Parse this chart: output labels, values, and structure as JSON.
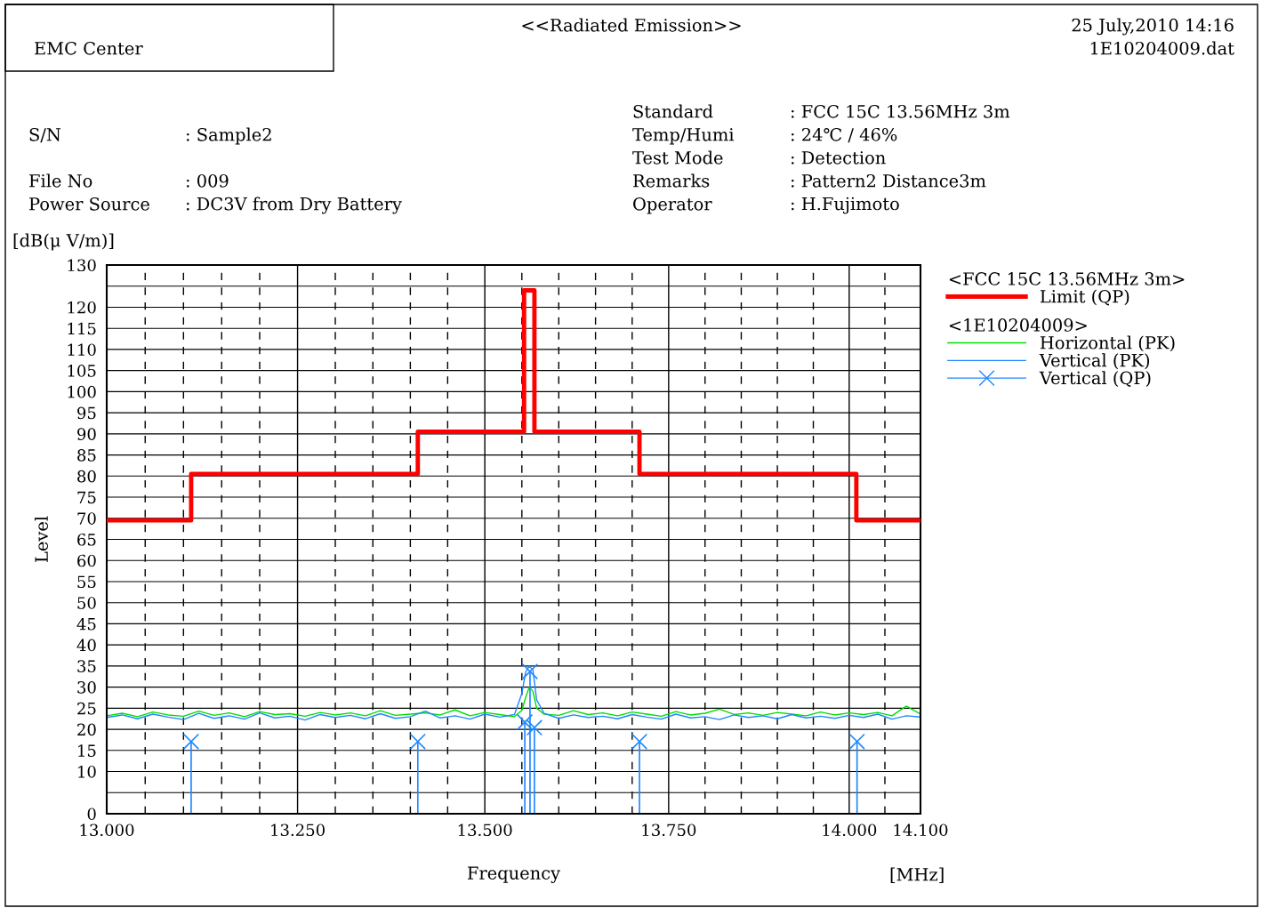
{
  "chart_data": {
    "type": "line",
    "title": "<<Radiated Emission>>",
    "xlabel": "Frequency",
    "ylabel": "Level",
    "legend_title": [
      "<FCC 15C 13.56MHz 3m>",
      "<1E10204009>"
    ],
    "annotations": [
      "EMC Center",
      "25 July,2010 14:16",
      "1E10204009.dat",
      "S/N",
      ": Sample2",
      "File No",
      ": 009",
      "Power Source",
      ": DC3V from Dry Battery",
      "Standard",
      ": FCC 15C 13.56MHz 3m",
      "Temp/Humi",
      ": 24℃ / 46%",
      "Test Mode",
      ": Detection",
      "Remarks",
      ": Pattern2 Distance3m",
      "Operator",
      ": H.Fujimoto",
      "[dB(μ V/m)]",
      "[MHz]"
    ],
    "log": "x",
    "grid": true,
    "legend": "right",
    "xlim": [
      13.0,
      14.1
    ],
    "xticks": [
      {
        "value": 13.0,
        "label": "13.000"
      },
      {
        "value": 13.05,
        "label": null
      },
      {
        "value": 13.1,
        "label": null
      },
      {
        "value": 13.15,
        "label": null
      },
      {
        "value": 13.2,
        "label": null
      },
      {
        "value": 13.25,
        "label": "13.250"
      },
      {
        "value": 13.3,
        "label": null
      },
      {
        "value": 13.35,
        "label": null
      },
      {
        "value": 13.4,
        "label": null
      },
      {
        "value": 13.45,
        "label": null
      },
      {
        "value": 13.5,
        "label": "13.500"
      },
      {
        "value": 13.55,
        "label": null
      },
      {
        "value": 13.6,
        "label": null
      },
      {
        "value": 13.65,
        "label": null
      },
      {
        "value": 13.7,
        "label": null
      },
      {
        "value": 13.75,
        "label": "13.750"
      },
      {
        "value": 13.8,
        "label": null
      },
      {
        "value": 13.85,
        "label": null
      },
      {
        "value": 13.9,
        "label": null
      },
      {
        "value": 13.95,
        "label": null
      },
      {
        "value": 14.0,
        "label": "14.000"
      },
      {
        "value": 14.05,
        "label": null
      },
      {
        "value": 14.1,
        "label": "14.100"
      }
    ],
    "ylim": [
      0,
      130
    ],
    "yticks": [
      0,
      {
        "value": 5,
        "label": null
      },
      10,
      15,
      20,
      25,
      30,
      35,
      40,
      45,
      50,
      55,
      60,
      65,
      70,
      75,
      80,
      85,
      90,
      95,
      100,
      105,
      110,
      115,
      120,
      {
        "value": 125,
        "label": null
      },
      130
    ],
    "series": [
      {
        "name": "Limit (QP)",
        "type": "step",
        "color": "#ff0000",
        "marker": "none",
        "x": [
          13.0,
          13.11,
          13.41,
          13.553,
          13.567,
          13.71,
          14.01,
          14.1
        ],
        "values": [
          69.5,
          80.5,
          90.5,
          124,
          90.5,
          80.5,
          69.5,
          69.5
        ]
      },
      {
        "name": "Horizontal (PK)",
        "color": "#00dd00",
        "marker": "none",
        "x": [
          13.0,
          13.02,
          13.04,
          13.06,
          13.08,
          13.1,
          13.12,
          13.14,
          13.16,
          13.18,
          13.2,
          13.22,
          13.24,
          13.26,
          13.28,
          13.3,
          13.32,
          13.34,
          13.36,
          13.38,
          13.4,
          13.42,
          13.44,
          13.46,
          13.48,
          13.5,
          13.52,
          13.54,
          13.55,
          13.555,
          13.56,
          13.565,
          13.57,
          13.58,
          13.6,
          13.62,
          13.64,
          13.66,
          13.68,
          13.7,
          13.72,
          13.74,
          13.76,
          13.78,
          13.8,
          13.82,
          13.84,
          13.86,
          13.88,
          13.9,
          13.92,
          13.94,
          13.96,
          13.98,
          14.0,
          14.02,
          14.04,
          14.06,
          14.08,
          14.1
        ],
        "values": [
          23.2,
          23.8,
          23.0,
          24.1,
          23.4,
          23.1,
          24.3,
          23.3,
          23.9,
          23.0,
          24.2,
          23.5,
          23.7,
          23.1,
          24.0,
          23.4,
          23.9,
          23.2,
          24.4,
          23.3,
          23.6,
          23.9,
          23.4,
          24.6,
          23.2,
          24.0,
          23.5,
          23.0,
          24.5,
          27.5,
          30.0,
          29.0,
          25.0,
          23.6,
          23.3,
          24.4,
          23.5,
          23.9,
          23.2,
          24.1,
          23.6,
          23.1,
          24.2,
          23.4,
          23.8,
          24.8,
          23.5,
          23.9,
          23.3,
          24.0,
          23.6,
          23.2,
          24.1,
          23.4,
          23.9,
          23.5,
          24.0,
          23.2,
          25.5,
          23.6
        ]
      },
      {
        "name": "Vertical (PK)",
        "color": "#1e88ff",
        "marker": "none",
        "x": [
          13.0,
          13.02,
          13.04,
          13.06,
          13.08,
          13.1,
          13.12,
          13.14,
          13.16,
          13.18,
          13.2,
          13.22,
          13.24,
          13.26,
          13.28,
          13.3,
          13.32,
          13.34,
          13.36,
          13.38,
          13.4,
          13.42,
          13.44,
          13.46,
          13.48,
          13.5,
          13.52,
          13.54,
          13.55,
          13.555,
          13.56,
          13.565,
          13.57,
          13.58,
          13.6,
          13.62,
          13.64,
          13.66,
          13.68,
          13.7,
          13.72,
          13.74,
          13.76,
          13.78,
          13.8,
          13.82,
          13.84,
          13.86,
          13.88,
          13.9,
          13.92,
          13.94,
          13.96,
          13.98,
          14.0,
          14.02,
          14.04,
          14.06,
          14.08,
          14.1
        ],
        "values": [
          22.8,
          23.4,
          22.5,
          23.6,
          22.9,
          22.3,
          23.8,
          22.6,
          23.2,
          22.4,
          23.9,
          22.7,
          23.1,
          22.2,
          23.5,
          22.8,
          23.3,
          22.5,
          23.7,
          22.6,
          23.0,
          24.3,
          22.7,
          23.2,
          22.4,
          23.6,
          22.9,
          23.5,
          28.5,
          33.5,
          35.0,
          34.0,
          27.0,
          23.8,
          22.6,
          23.4,
          22.8,
          23.1,
          22.5,
          23.5,
          22.9,
          22.4,
          23.6,
          22.7,
          23.0,
          22.3,
          23.4,
          22.8,
          23.2,
          22.5,
          23.5,
          22.7,
          23.1,
          22.6,
          23.3,
          22.8,
          23.6,
          22.4,
          23.2,
          22.9
        ]
      },
      {
        "name": "Vertical (QP)",
        "type": "lollipop",
        "color": "#1e88ff",
        "marker": "cross",
        "x": [
          13.11,
          13.41,
          13.554,
          13.561,
          13.567,
          13.71,
          14.011
        ],
        "values": [
          17.1,
          17.1,
          21.7,
          33.7,
          20.4,
          17.1,
          17.1
        ]
      }
    ]
  }
}
